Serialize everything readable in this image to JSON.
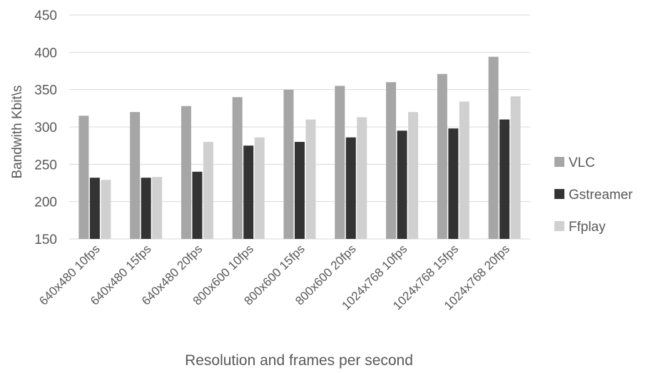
{
  "chart_data": {
    "type": "bar",
    "title": "",
    "xlabel": "Resolution and frames per second",
    "ylabel": "Bandwith Kbit\\s",
    "ylim": [
      150,
      450
    ],
    "yticks": [
      150,
      200,
      250,
      300,
      350,
      400,
      450
    ],
    "grid": true,
    "legend_position": "right",
    "categories": [
      "640x480 10fps",
      "640x480 15fps",
      "640x480 20fps",
      "800x600 10fps",
      "800x600 15fps",
      "800x600 20fps",
      "1024x768 10fps",
      "1024x768 15fps",
      "1024x768 20fps"
    ],
    "series": [
      {
        "name": "VLC",
        "color": "#a6a6a6",
        "values": [
          315,
          320,
          328,
          340,
          350,
          355,
          360,
          371,
          394
        ]
      },
      {
        "name": "Gstreamer",
        "color": "#333333",
        "values": [
          232,
          232,
          240,
          275,
          280,
          286,
          295,
          298,
          310
        ]
      },
      {
        "name": "Ffplay",
        "color": "#d0d0d0",
        "values": [
          229,
          233,
          280,
          286,
          310,
          313,
          320,
          334,
          341
        ]
      }
    ]
  }
}
